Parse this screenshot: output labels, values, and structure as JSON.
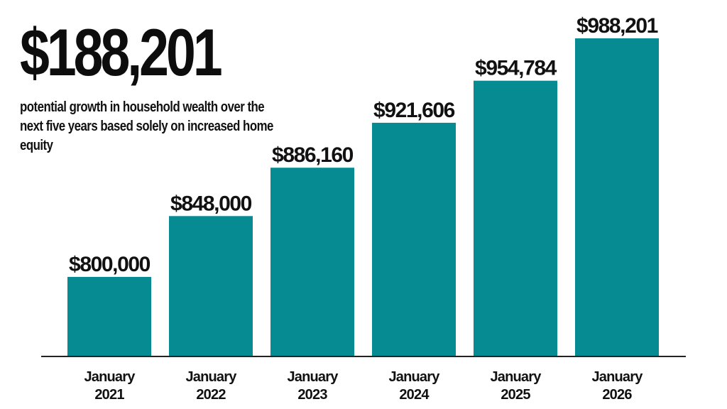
{
  "headline": {
    "value": "$188,201",
    "subtitle": "potential growth in household wealth over the next five years based solely on increased home equity"
  },
  "colors": {
    "bar": "#078b93",
    "axis": "#222222",
    "text": "#111111"
  },
  "chart_data": {
    "type": "bar",
    "title": "",
    "xlabel": "",
    "ylabel": "",
    "categories": [
      [
        "January",
        "2021"
      ],
      [
        "January",
        "2022"
      ],
      [
        "January",
        "2023"
      ],
      [
        "January",
        "2024"
      ],
      [
        "January",
        "2025"
      ],
      [
        "January",
        "2026"
      ]
    ],
    "values": [
      800000,
      848000,
      886160,
      921606,
      954784,
      988201
    ],
    "data_labels": [
      "$800,000",
      "$848,000",
      "$886,160",
      "$921,606",
      "$954,784",
      "$988,201"
    ],
    "grid": false,
    "legend": "none"
  }
}
